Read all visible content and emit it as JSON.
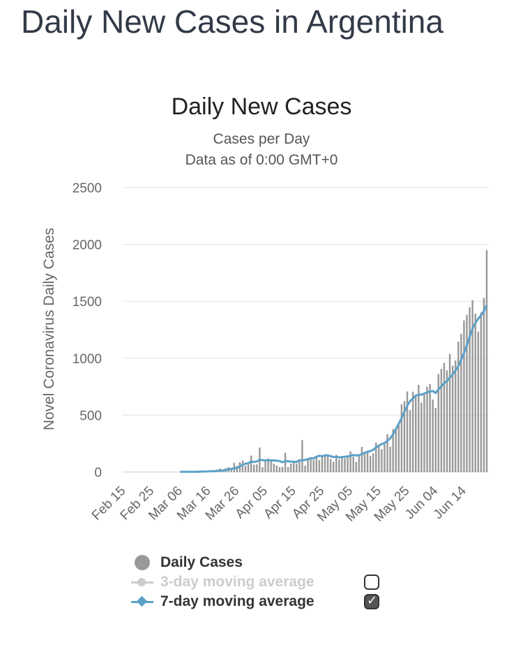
{
  "page": {
    "title": "Daily New Cases in Argentina"
  },
  "chart_data": {
    "type": "bar",
    "title": "Daily New Cases",
    "subtitle": "Cases per Day",
    "subtitle2": "Data as of 0:00 GMT+0",
    "xlabel": "",
    "ylabel": "Novel Coronavirus Daily Cases",
    "ylim": [
      0,
      2500
    ],
    "yticks": [
      0,
      500,
      1000,
      1500,
      2000,
      2500
    ],
    "xtick_labels": [
      "Feb 15",
      "Feb 25",
      "Mar 06",
      "Mar 16",
      "Mar 26",
      "Apr 05",
      "Apr 15",
      "Apr 25",
      "May 05",
      "May 15",
      "May 25",
      "Jun 04",
      "Jun 14"
    ],
    "grid": true,
    "legend_position": "bottom-left",
    "colors": {
      "bars": "#999999",
      "avg7": "#5ba1c9",
      "avg3_disabled": "#cccccc",
      "axis_text": "#666666"
    },
    "series": [
      {
        "name": "Daily Cases",
        "kind": "bar",
        "values": [
          0,
          0,
          0,
          0,
          0,
          0,
          0,
          0,
          0,
          0,
          0,
          0,
          0,
          0,
          0,
          0,
          0,
          0,
          0,
          0,
          1,
          0,
          2,
          3,
          5,
          2,
          3,
          0,
          12,
          0,
          6,
          17,
          3,
          21,
          31,
          13,
          34,
          43,
          35,
          81,
          53,
          86,
          101,
          55,
          79,
          144,
          64,
          67,
          216,
          43,
          100,
          118,
          103,
          72,
          57,
          43,
          45,
          169,
          43,
          72,
          82,
          72,
          105,
          280,
          56,
          106,
          124,
          107,
          129,
          104,
          145,
          146,
          155,
          115,
          90,
          150,
          109,
          125,
          121,
          145,
          181,
          135,
          89,
          152,
          221,
          165,
          172,
          139,
          163,
          259,
          240,
          201,
          246,
          332,
          222,
          377,
          388,
          433,
          596,
          624,
          708,
          544,
          706,
          681,
          766,
          611,
          694,
          748,
          772,
          637,
          564,
          861,
          907,
          959,
          894,
          1038,
          934,
          980,
          1146,
          1215,
          1332,
          1382,
          1448,
          1510,
          1391,
          1234,
          1403,
          1530,
          1951
        ],
        "start": "Feb 15"
      },
      {
        "name": "7-day moving average",
        "kind": "line",
        "values": [
          null,
          null,
          null,
          null,
          null,
          null,
          null,
          null,
          null,
          null,
          null,
          null,
          null,
          null,
          null,
          null,
          null,
          null,
          null,
          null,
          1,
          1,
          1,
          1,
          2,
          2,
          2,
          3,
          4,
          5,
          6,
          7,
          8,
          10,
          12,
          14,
          18,
          22,
          27,
          33,
          37,
          49,
          64,
          73,
          78,
          91,
          89,
          92,
          109,
          104,
          101,
          105,
          102,
          102,
          100,
          96,
          86,
          97,
          95,
          90,
          90,
          87,
          104,
          101,
          106,
          114,
          121,
          120,
          135,
          142,
          139,
          147,
          145,
          139,
          132,
          134,
          128,
          131,
          134,
          138,
          142,
          150,
          145,
          148,
          156,
          170,
          178,
          184,
          195,
          216,
          231,
          246,
          256,
          272,
          297,
          331,
          377,
          424,
          475,
          529,
          582,
          623,
          647,
          669,
          682,
          679,
          690,
          700,
          708,
          712,
          694,
          727,
          752,
          781,
          799,
          830,
          857,
          891,
          930,
          985,
          1046,
          1116,
          1188,
          1264,
          1308,
          1348,
          1376,
          1414,
          1467
        ]
      },
      {
        "name": "3-day moving average",
        "kind": "line",
        "enabled": false
      }
    ]
  },
  "legend": {
    "items": [
      {
        "label": "Daily Cases",
        "icon": "filled-circle",
        "enabled": true,
        "has_checkbox": false
      },
      {
        "label": "3-day moving average",
        "icon": "circle-line",
        "enabled": false,
        "has_checkbox": true,
        "checked": false
      },
      {
        "label": "7-day moving average",
        "icon": "diamond-line",
        "enabled": true,
        "has_checkbox": true,
        "checked": true
      }
    ]
  }
}
